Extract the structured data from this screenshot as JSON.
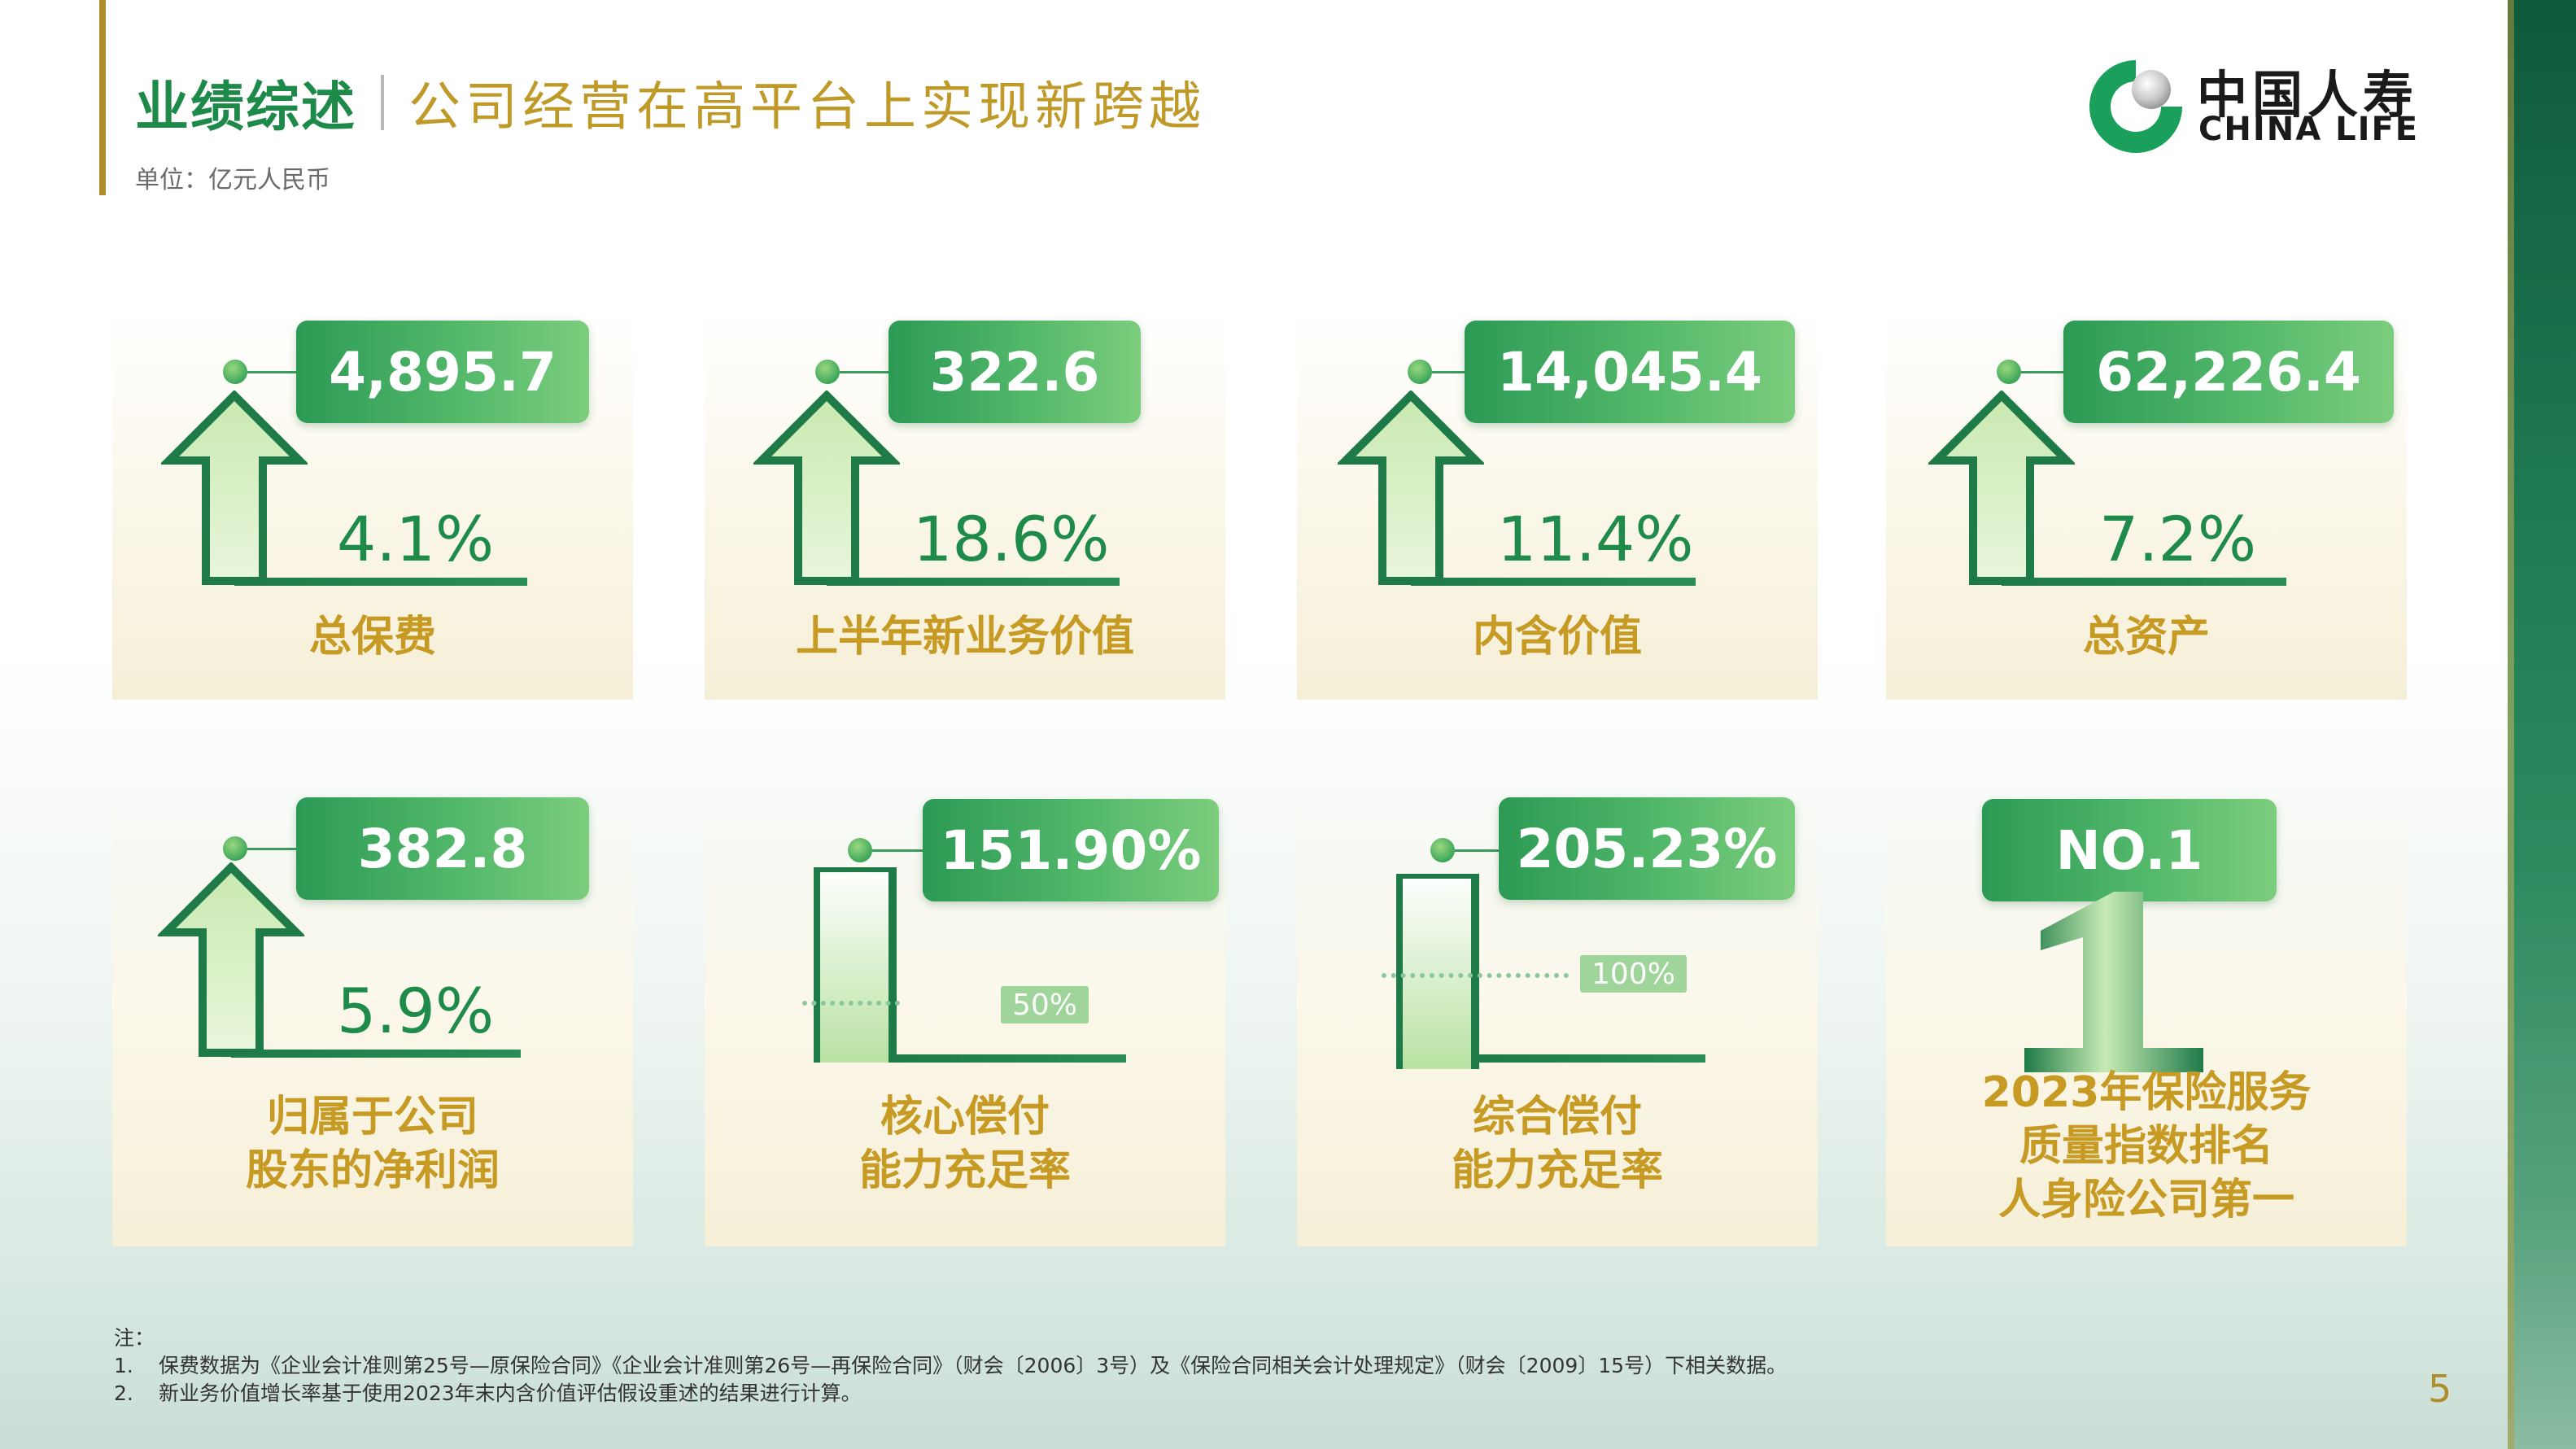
{
  "header": {
    "title": "业绩综述",
    "subtitle": "公司经营在高平台上实现新跨越",
    "unit": "单位：亿元人民币"
  },
  "logo": {
    "cn": "中国人寿",
    "en": "CHINA LIFE"
  },
  "cards": [
    {
      "value": "4,895.7",
      "growth": "4.1%",
      "label_lines": [
        "总保费"
      ],
      "icon": "up-arrow-icon"
    },
    {
      "value": "322.6",
      "growth": "18.6%",
      "label_lines": [
        "上半年新业务价值"
      ],
      "icon": "up-arrow-icon"
    },
    {
      "value": "14,045.4",
      "growth": "11.4%",
      "label_lines": [
        "内含价值"
      ],
      "icon": "up-arrow-icon"
    },
    {
      "value": "62,226.4",
      "growth": "7.2%",
      "label_lines": [
        "总资产"
      ],
      "icon": "up-arrow-icon"
    },
    {
      "value": "382.8",
      "growth": "5.9%",
      "label_lines": [
        "归属于公司",
        "股东的净利润"
      ],
      "icon": "up-arrow-icon"
    },
    {
      "value": "151.90%",
      "reference": "50%",
      "label_lines": [
        "核心偿付",
        "能力充足率"
      ],
      "icon": "bar-level-icon"
    },
    {
      "value": "205.23%",
      "reference": "100%",
      "label_lines": [
        "综合偿付",
        "能力充足率"
      ],
      "icon": "bar-level-icon"
    },
    {
      "value": "NO.1",
      "label_lines": [
        "2023年保险服务",
        "质量指数排名",
        "人身险公司第一"
      ],
      "icon": "number-one-icon"
    }
  ],
  "notes": {
    "heading": "注：",
    "items": [
      {
        "index": "1.",
        "text": "保费数据为《企业会计准则第25号—原保险合同》《企业会计准则第26号—再保险合同》（财会〔2006〕3号）及《保险合同相关会计处理规定》（财会〔2009〕15号）下相关数据。"
      },
      {
        "index": "2.",
        "text": "新业务价值增长率基于使用2023年末内含价值评估假设重述的结果进行计算。"
      }
    ]
  },
  "page_number": "5",
  "colors": {
    "green": "#1f8b4a",
    "gold": "#c69a23",
    "pill": "#3aa85e"
  }
}
